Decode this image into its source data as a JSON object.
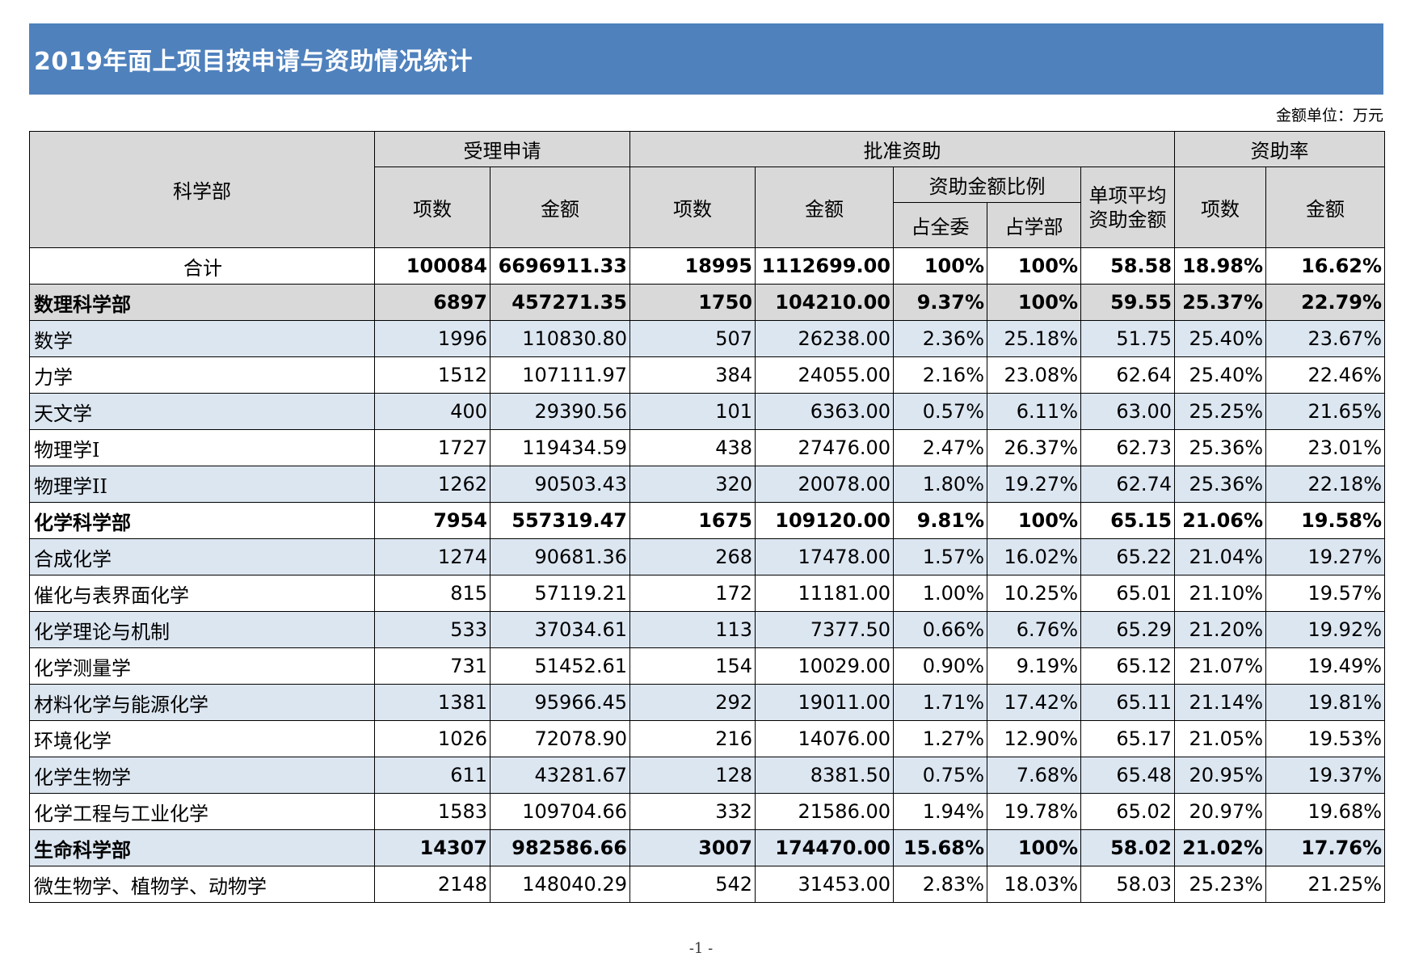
{
  "title": "2019年面上项目按申请与资助情况统计",
  "unit_note": "金额单位：万元",
  "headers": {
    "dept": "科学部",
    "accepted": "受理申请",
    "approved": "批准资助",
    "rate": "资助率",
    "count": "项数",
    "amount": "金额",
    "ratio": "资助金额比例",
    "share_all": "占全委",
    "share_dept": "占学部",
    "avg_line1": "单项平均",
    "avg_line2": "资助金额"
  },
  "colors": {
    "title_bg": "#4f81bd",
    "header_bg": "#d9d9d9",
    "stripe_blue": "#dce6f1",
    "stripe_white": "#ffffff"
  },
  "rows": [
    {
      "type": "total",
      "name": "合计",
      "app_count": "100084",
      "app_amount": "6696911.33",
      "fund_count": "18995",
      "fund_amount": "1112699.00",
      "share_all": "100%",
      "share_dept": "100%",
      "avg": "58.58",
      "rate_count": "18.98%",
      "rate_amount": "16.62%",
      "bg": "#ffffff"
    },
    {
      "type": "dept",
      "name": "数理科学部",
      "app_count": "6897",
      "app_amount": "457271.35",
      "fund_count": "1750",
      "fund_amount": "104210.00",
      "share_all": "9.37%",
      "share_dept": "100%",
      "avg": "59.55",
      "rate_count": "25.37%",
      "rate_amount": "22.79%",
      "bg": "#d9d9d9"
    },
    {
      "type": "item",
      "name": "数学",
      "app_count": "1996",
      "app_amount": "110830.80",
      "fund_count": "507",
      "fund_amount": "26238.00",
      "share_all": "2.36%",
      "share_dept": "25.18%",
      "avg": "51.75",
      "rate_count": "25.40%",
      "rate_amount": "23.67%",
      "bg": "#dce6f1"
    },
    {
      "type": "item",
      "name": "力学",
      "app_count": "1512",
      "app_amount": "107111.97",
      "fund_count": "384",
      "fund_amount": "24055.00",
      "share_all": "2.16%",
      "share_dept": "23.08%",
      "avg": "62.64",
      "rate_count": "25.40%",
      "rate_amount": "22.46%",
      "bg": "#ffffff"
    },
    {
      "type": "item",
      "name": "天文学",
      "app_count": "400",
      "app_amount": "29390.56",
      "fund_count": "101",
      "fund_amount": "6363.00",
      "share_all": "0.57%",
      "share_dept": "6.11%",
      "avg": "63.00",
      "rate_count": "25.25%",
      "rate_amount": "21.65%",
      "bg": "#dce6f1"
    },
    {
      "type": "item",
      "name": "物理学I",
      "app_count": "1727",
      "app_amount": "119434.59",
      "fund_count": "438",
      "fund_amount": "27476.00",
      "share_all": "2.47%",
      "share_dept": "26.37%",
      "avg": "62.73",
      "rate_count": "25.36%",
      "rate_amount": "23.01%",
      "bg": "#ffffff"
    },
    {
      "type": "item",
      "name": "物理学II",
      "app_count": "1262",
      "app_amount": "90503.43",
      "fund_count": "320",
      "fund_amount": "20078.00",
      "share_all": "1.80%",
      "share_dept": "19.27%",
      "avg": "62.74",
      "rate_count": "25.36%",
      "rate_amount": "22.18%",
      "bg": "#dce6f1"
    },
    {
      "type": "dept",
      "name": "化学科学部",
      "app_count": "7954",
      "app_amount": "557319.47",
      "fund_count": "1675",
      "fund_amount": "109120.00",
      "share_all": "9.81%",
      "share_dept": "100%",
      "avg": "65.15",
      "rate_count": "21.06%",
      "rate_amount": "19.58%",
      "bg": "#ffffff"
    },
    {
      "type": "item",
      "name": "合成化学",
      "app_count": "1274",
      "app_amount": "90681.36",
      "fund_count": "268",
      "fund_amount": "17478.00",
      "share_all": "1.57%",
      "share_dept": "16.02%",
      "avg": "65.22",
      "rate_count": "21.04%",
      "rate_amount": "19.27%",
      "bg": "#dce6f1"
    },
    {
      "type": "item",
      "name": "催化与表界面化学",
      "app_count": "815",
      "app_amount": "57119.21",
      "fund_count": "172",
      "fund_amount": "11181.00",
      "share_all": "1.00%",
      "share_dept": "10.25%",
      "avg": "65.01",
      "rate_count": "21.10%",
      "rate_amount": "19.57%",
      "bg": "#ffffff"
    },
    {
      "type": "item",
      "name": "化学理论与机制",
      "app_count": "533",
      "app_amount": "37034.61",
      "fund_count": "113",
      "fund_amount": "7377.50",
      "share_all": "0.66%",
      "share_dept": "6.76%",
      "avg": "65.29",
      "rate_count": "21.20%",
      "rate_amount": "19.92%",
      "bg": "#dce6f1"
    },
    {
      "type": "item",
      "name": "化学测量学",
      "app_count": "731",
      "app_amount": "51452.61",
      "fund_count": "154",
      "fund_amount": "10029.00",
      "share_all": "0.90%",
      "share_dept": "9.19%",
      "avg": "65.12",
      "rate_count": "21.07%",
      "rate_amount": "19.49%",
      "bg": "#ffffff"
    },
    {
      "type": "item",
      "name": "材料化学与能源化学",
      "app_count": "1381",
      "app_amount": "95966.45",
      "fund_count": "292",
      "fund_amount": "19011.00",
      "share_all": "1.71%",
      "share_dept": "17.42%",
      "avg": "65.11",
      "rate_count": "21.14%",
      "rate_amount": "19.81%",
      "bg": "#dce6f1"
    },
    {
      "type": "item",
      "name": "环境化学",
      "app_count": "1026",
      "app_amount": "72078.90",
      "fund_count": "216",
      "fund_amount": "14076.00",
      "share_all": "1.27%",
      "share_dept": "12.90%",
      "avg": "65.17",
      "rate_count": "21.05%",
      "rate_amount": "19.53%",
      "bg": "#ffffff"
    },
    {
      "type": "item",
      "name": "化学生物学",
      "app_count": "611",
      "app_amount": "43281.67",
      "fund_count": "128",
      "fund_amount": "8381.50",
      "share_all": "0.75%",
      "share_dept": "7.68%",
      "avg": "65.48",
      "rate_count": "20.95%",
      "rate_amount": "19.37%",
      "bg": "#dce6f1"
    },
    {
      "type": "item",
      "name": "化学工程与工业化学",
      "app_count": "1583",
      "app_amount": "109704.66",
      "fund_count": "332",
      "fund_amount": "21586.00",
      "share_all": "1.94%",
      "share_dept": "19.78%",
      "avg": "65.02",
      "rate_count": "20.97%",
      "rate_amount": "19.68%",
      "bg": "#ffffff"
    },
    {
      "type": "dept",
      "name": "生命科学部",
      "app_count": "14307",
      "app_amount": "982586.66",
      "fund_count": "3007",
      "fund_amount": "174470.00",
      "share_all": "15.68%",
      "share_dept": "100%",
      "avg": "58.02",
      "rate_count": "21.02%",
      "rate_amount": "17.76%",
      "bg": "#dce6f1"
    },
    {
      "type": "item",
      "name": "微生物学、植物学、动物学",
      "app_count": "2148",
      "app_amount": "148040.29",
      "fund_count": "542",
      "fund_amount": "31453.00",
      "share_all": "2.83%",
      "share_dept": "18.03%",
      "avg": "58.03",
      "rate_count": "25.23%",
      "rate_amount": "21.25%",
      "bg": "#ffffff"
    }
  ],
  "page_number": "-1 -"
}
